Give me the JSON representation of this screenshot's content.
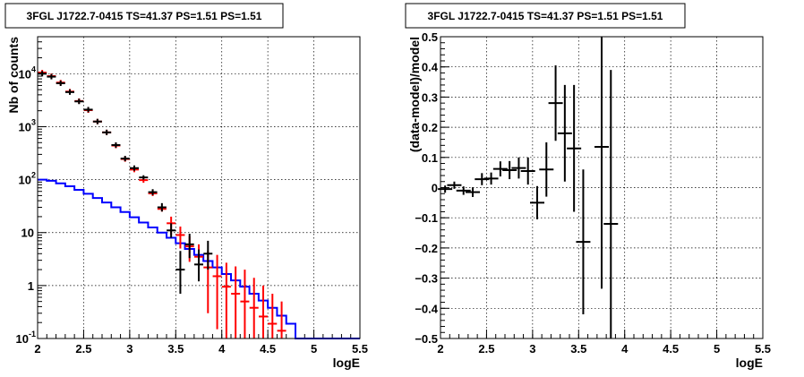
{
  "chart_data": [
    {
      "type": "histogram",
      "title": "3FGL J1722.7-0415 TS=41.37 PS=1.51 PS=1.51",
      "xlabel": "logE",
      "ylabel": "Nb of counts",
      "xlim": [
        2,
        5.5
      ],
      "ylim": [
        0.1,
        50000
      ],
      "yscale": "log",
      "grid": true,
      "x_ticks": [
        "2",
        "2.5",
        "3",
        "3.5",
        "4",
        "4.5",
        "5",
        "5.5"
      ],
      "y_ticks": [
        {
          "value": 0.1,
          "base": "10",
          "exp": "-1"
        },
        {
          "value": 1,
          "base": "1",
          "exp": ""
        },
        {
          "value": 10,
          "base": "10",
          "exp": ""
        },
        {
          "value": 100,
          "base": "10",
          "exp": "2"
        },
        {
          "value": 1000,
          "base": "10",
          "exp": "3"
        },
        {
          "value": 10000,
          "base": "10",
          "exp": "4"
        }
      ],
      "series": [
        {
          "kind": "data",
          "color": "#000000",
          "points": [
            {
              "x": 2.05,
              "y": 10000
            },
            {
              "x": 2.15,
              "y": 8800
            },
            {
              "x": 2.25,
              "y": 6600
            },
            {
              "x": 2.35,
              "y": 4500
            },
            {
              "x": 2.45,
              "y": 3000
            },
            {
              "x": 2.55,
              "y": 2100
            },
            {
              "x": 2.65,
              "y": 1250
            },
            {
              "x": 2.75,
              "y": 780
            },
            {
              "x": 2.85,
              "y": 450
            },
            {
              "x": 2.95,
              "y": 250
            },
            {
              "x": 3.05,
              "y": 165
            },
            {
              "x": 3.15,
              "y": 110,
              "lo": 100,
              "hi": 121
            },
            {
              "x": 3.25,
              "y": 58,
              "lo": 51,
              "hi": 66
            },
            {
              "x": 3.35,
              "y": 30,
              "lo": 25,
              "hi": 36
            },
            {
              "x": 3.45,
              "y": 11,
              "lo": 8,
              "hi": 15
            },
            {
              "x": 3.55,
              "y": 2,
              "lo": 0.7,
              "hi": 4.5
            },
            {
              "x": 3.65,
              "y": 6,
              "lo": 3.3,
              "hi": 9.5
            },
            {
              "x": 3.75,
              "y": 2.5,
              "lo": 1.2,
              "hi": 4.8
            },
            {
              "x": 3.85,
              "y": 4,
              "lo": 2,
              "hi": 7
            }
          ]
        },
        {
          "kind": "model",
          "color": "#ff0000",
          "points": [
            {
              "x": 2.05,
              "y": 10500
            },
            {
              "x": 2.15,
              "y": 9000
            },
            {
              "x": 2.25,
              "y": 6800
            },
            {
              "x": 2.35,
              "y": 4600
            },
            {
              "x": 2.45,
              "y": 3050
            },
            {
              "x": 2.55,
              "y": 2050
            },
            {
              "x": 2.65,
              "y": 1250
            },
            {
              "x": 2.75,
              "y": 780
            },
            {
              "x": 2.85,
              "y": 440
            },
            {
              "x": 2.95,
              "y": 245
            },
            {
              "x": 3.05,
              "y": 155
            },
            {
              "x": 3.15,
              "y": 98
            },
            {
              "x": 3.25,
              "y": 55
            },
            {
              "x": 3.35,
              "y": 28
            },
            {
              "x": 3.45,
              "y": 15,
              "lo": 9,
              "hi": 20
            },
            {
              "x": 3.55,
              "y": 9,
              "lo": 5,
              "hi": 13
            },
            {
              "x": 3.65,
              "y": 5.5,
              "lo": 2.8,
              "hi": 8.5
            },
            {
              "x": 3.75,
              "y": 3.5,
              "lo": 1.7,
              "hi": 6
            },
            {
              "x": 3.85,
              "y": 2.2,
              "lo": 0.3,
              "hi": 4.5
            },
            {
              "x": 3.95,
              "y": 1.5,
              "lo": 0.15,
              "hi": 3.8
            },
            {
              "x": 4.05,
              "y": 0.95,
              "lo": 0.1,
              "hi": 2.7
            },
            {
              "x": 4.15,
              "y": 0.7,
              "lo": 0.1,
              "hi": 2.3
            },
            {
              "x": 4.25,
              "y": 0.5,
              "lo": 0.1,
              "hi": 2.0
            },
            {
              "x": 4.35,
              "y": 0.38,
              "lo": 0.1,
              "hi": 1.4
            },
            {
              "x": 4.45,
              "y": 0.26,
              "lo": 0.1,
              "hi": 1.0
            },
            {
              "x": 4.55,
              "y": 0.19,
              "lo": 0.1,
              "hi": 0.7
            },
            {
              "x": 4.65,
              "y": 0.14,
              "lo": 0.1,
              "hi": 0.5
            }
          ]
        },
        {
          "kind": "background",
          "color": "#0000ff",
          "bin_edges": [
            2.0,
            2.1,
            2.2,
            2.3,
            2.4,
            2.5,
            2.6,
            2.7,
            2.8,
            2.9,
            3.0,
            3.1,
            3.2,
            3.3,
            3.4,
            3.5,
            3.6,
            3.7,
            3.8,
            3.9,
            4.0,
            4.1,
            4.2,
            4.3,
            4.4,
            4.5,
            4.6,
            4.7,
            4.8,
            5.5
          ],
          "values": [
            100,
            95,
            85,
            75,
            64,
            54,
            45,
            37,
            30,
            24.5,
            19.5,
            15.5,
            12.5,
            10,
            8,
            6.3,
            4.9,
            3.8,
            2.9,
            2.2,
            1.65,
            1.25,
            0.95,
            0.7,
            0.52,
            0.38,
            0.27,
            0.19,
            0.1
          ]
        }
      ]
    },
    {
      "type": "scatter",
      "title": "3FGL J1722.7-0415 TS=41.37 PS=1.51 PS=1.51",
      "xlabel": "logE",
      "ylabel": "(data-model)/model",
      "xlim": [
        2,
        5.5
      ],
      "ylim": [
        -0.5,
        0.5
      ],
      "grid": true,
      "x_ticks": [
        "2",
        "2.5",
        "3",
        "3.5",
        "4",
        "4.5",
        "5",
        "5.5"
      ],
      "y_ticks": [
        "0.5",
        "0.4",
        "0.3",
        "0.2",
        "0.1",
        "0",
        "-0.1",
        "-0.2",
        "-0.3",
        "-0.4",
        "-0.5"
      ],
      "series": [
        {
          "color": "#000000",
          "points": [
            {
              "x": 2.05,
              "y": -0.005,
              "err": 0.012
            },
            {
              "x": 2.15,
              "y": 0.008,
              "err": 0.012
            },
            {
              "x": 2.25,
              "y": -0.01,
              "err": 0.014
            },
            {
              "x": 2.35,
              "y": -0.015,
              "err": 0.016
            },
            {
              "x": 2.45,
              "y": 0.028,
              "err": 0.02
            },
            {
              "x": 2.55,
              "y": 0.03,
              "err": 0.02
            },
            {
              "x": 2.65,
              "y": 0.062,
              "err": 0.025
            },
            {
              "x": 2.75,
              "y": 0.058,
              "err": 0.03
            },
            {
              "x": 2.85,
              "y": 0.065,
              "err": 0.035
            },
            {
              "x": 2.95,
              "y": 0.055,
              "err": 0.045
            },
            {
              "x": 3.05,
              "y": -0.05,
              "err": 0.055
            },
            {
              "x": 3.15,
              "y": 0.06,
              "err": 0.09
            },
            {
              "x": 3.25,
              "y": 0.28,
              "err": 0.125
            },
            {
              "x": 3.35,
              "y": 0.18,
              "err": 0.16
            },
            {
              "x": 3.45,
              "y": 0.13,
              "err": 0.21
            },
            {
              "x": 3.55,
              "y": -0.18,
              "err": 0.24
            },
            {
              "x": 3.75,
              "y": 0.135,
              "err": 0.47
            },
            {
              "x": 3.85,
              "y": -0.12,
              "err": 0.51
            }
          ]
        }
      ]
    }
  ]
}
